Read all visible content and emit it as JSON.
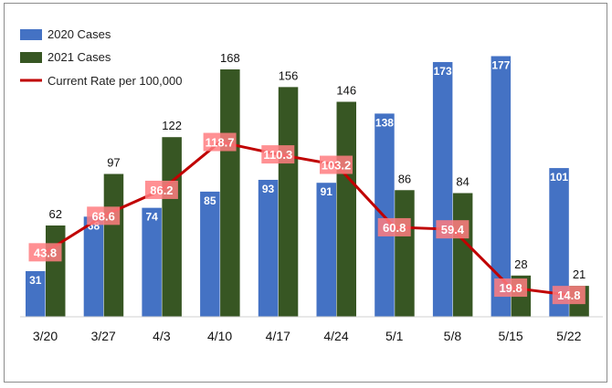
{
  "chart_data": {
    "type": "bar",
    "categories": [
      "3/20",
      "3/27",
      "4/3",
      "4/10",
      "4/17",
      "4/24",
      "5/1",
      "5/8",
      "5/15",
      "5/22"
    ],
    "series": [
      {
        "name": "2020 Cases",
        "type": "bar",
        "color": "#4472c4",
        "values": [
          31,
          68,
          74,
          85,
          93,
          91,
          138,
          173,
          177,
          101
        ]
      },
      {
        "name": "2021 Cases",
        "type": "bar",
        "color": "#375623",
        "values": [
          62,
          97,
          122,
          168,
          156,
          146,
          86,
          84,
          28,
          21
        ]
      },
      {
        "name": "Current Rate per 100,000",
        "type": "line",
        "color": "#c00000",
        "label_bg": "#ff7c80",
        "values": [
          43.8,
          68.6,
          86.2,
          118.7,
          110.3,
          103.2,
          60.8,
          59.4,
          19.8,
          14.8
        ]
      }
    ],
    "ylim": [
      0,
      180
    ],
    "legend_position": "top-left",
    "grid": false
  }
}
